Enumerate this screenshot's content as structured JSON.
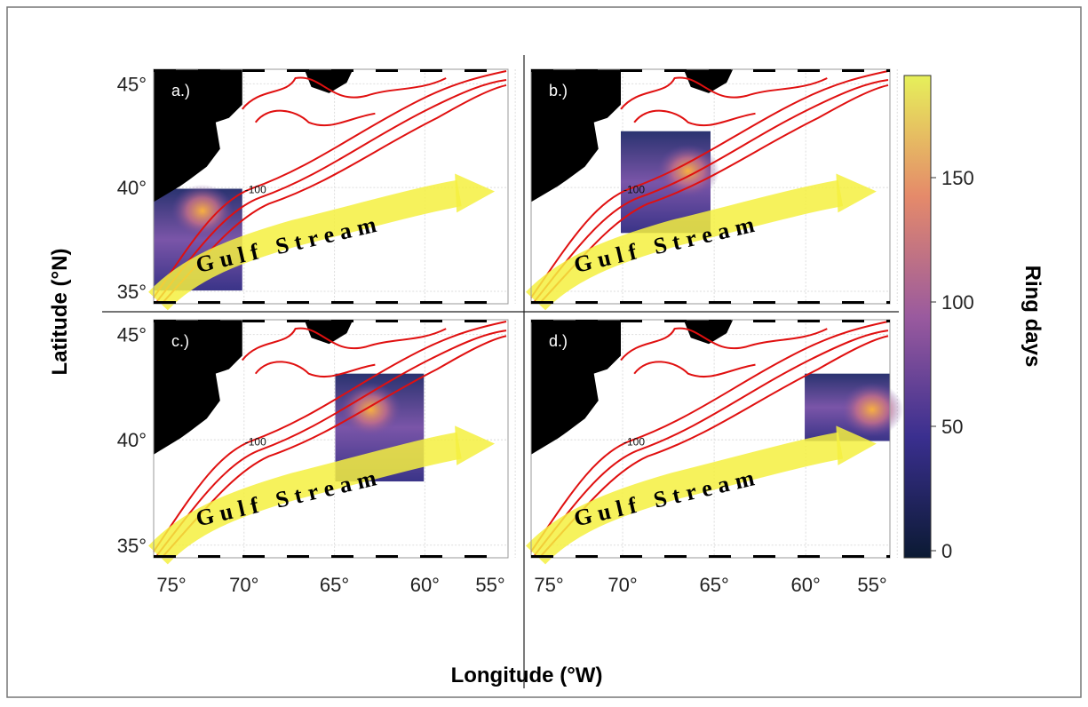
{
  "axes": {
    "x_label": "Longitude (°W)",
    "y_label": "Latitude (°N)",
    "xlim": [
      75,
      55.4
    ],
    "ylim": [
      34.4,
      45.7
    ],
    "xticks": [
      {
        "value": 75,
        "label": "75°"
      },
      {
        "value": 70,
        "label": "70°"
      },
      {
        "value": 65,
        "label": "65°"
      },
      {
        "value": 60,
        "label": "60°"
      },
      {
        "value": 55,
        "label": "55°"
      }
    ],
    "yticks": [
      {
        "value": 45,
        "label": "45°"
      },
      {
        "value": 40,
        "label": "40°"
      },
      {
        "value": 35,
        "label": "35°"
      }
    ]
  },
  "panels": [
    {
      "label": "a.)",
      "contour_label": "-100"
    },
    {
      "label": "b.)",
      "contour_label": "-100"
    },
    {
      "label": "c.)",
      "contour_label": "-100"
    },
    {
      "label": "d.)",
      "contour_label": "-100"
    }
  ],
  "stream_label": "Gulf Stream",
  "colorbar": {
    "label": "Ring days",
    "lim": [
      0,
      190
    ],
    "ticks": [
      0,
      50,
      100,
      150
    ]
  }
}
